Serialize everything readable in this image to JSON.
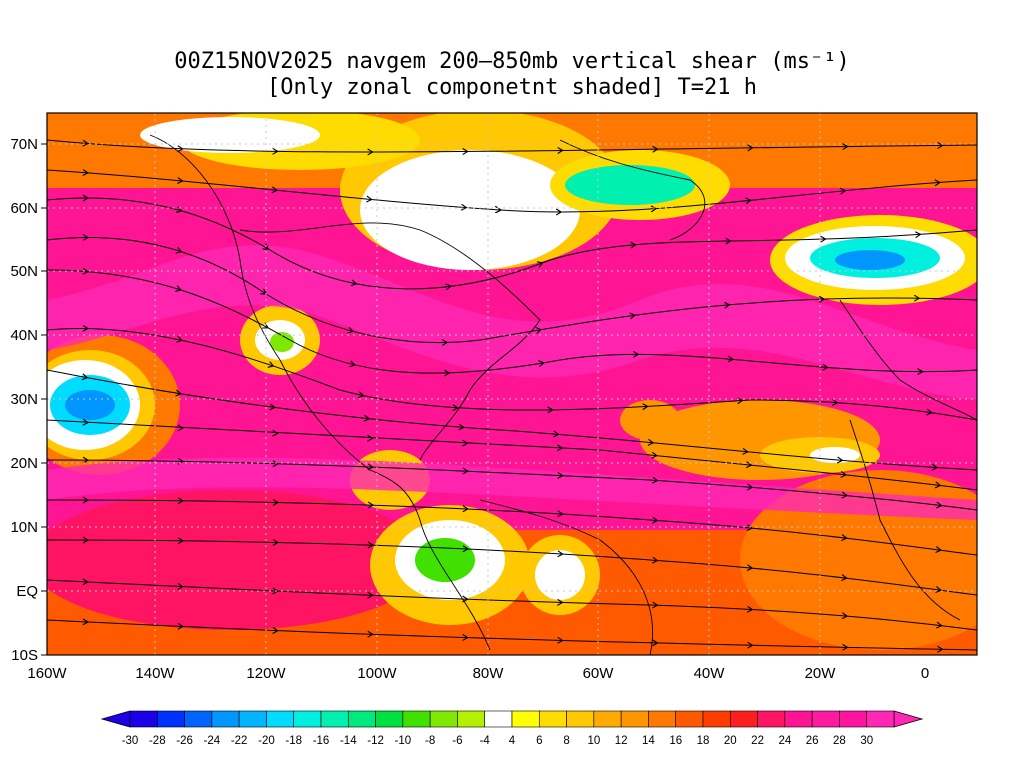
{
  "title": {
    "line1": "00Z15NOV2025 navgem 200–850mb vertical shear (ms⁻¹)",
    "line2": "[Only zonal componetnt shaded] T=21 h"
  },
  "axes": {
    "lat_labels": [
      "70N",
      "60N",
      "50N",
      "40N",
      "30N",
      "20N",
      "10N",
      "EQ",
      "10S"
    ],
    "lon_labels": [
      "160W",
      "140W",
      "120W",
      "100W",
      "80W",
      "60W",
      "40W",
      "20W",
      "0"
    ]
  },
  "colorbar": {
    "labels": [
      "-30",
      "-28",
      "-26",
      "-24",
      "-22",
      "-20",
      "-18",
      "-16",
      "-14",
      "-12",
      "-10",
      "-8",
      "-6",
      "-4",
      "4",
      "6",
      "8",
      "10",
      "12",
      "14",
      "16",
      "18",
      "20",
      "22",
      "24",
      "26",
      "28",
      "30"
    ],
    "colors": [
      "#1c00e8",
      "#0032ff",
      "#0064ff",
      "#0096ff",
      "#00b4ff",
      "#00dcff",
      "#00f0e0",
      "#00f0b0",
      "#00e880",
      "#00e040",
      "#40e000",
      "#80e800",
      "#b4f000",
      "#ffffff",
      "#ffff00",
      "#ffdc00",
      "#ffc800",
      "#ffaa00",
      "#ff9600",
      "#ff7800",
      "#ff5a00",
      "#ff3c00",
      "#ff1e1e",
      "#ff1464",
      "#ff1493",
      "#ff1aa0",
      "#ff14a0",
      "#ff28b4"
    ]
  }
}
